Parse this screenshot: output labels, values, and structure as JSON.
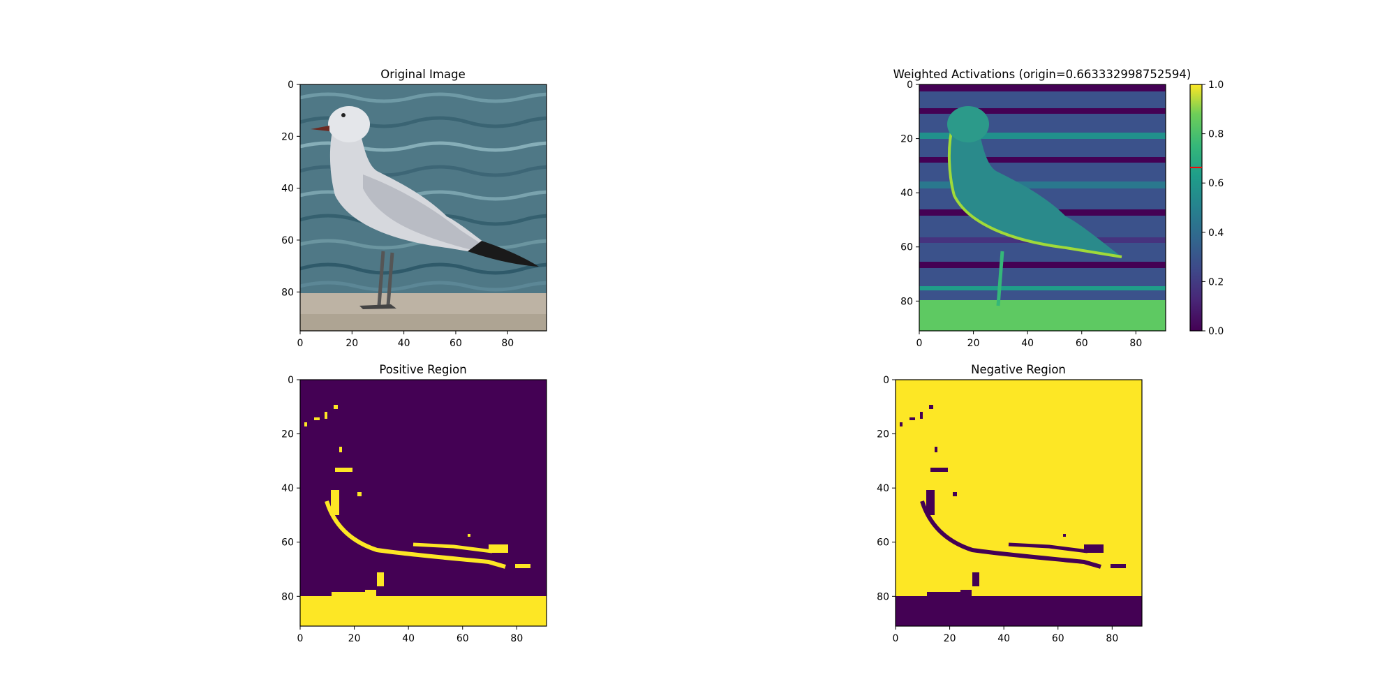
{
  "chart_data": [
    {
      "type": "image",
      "title": "Original Image",
      "image_subject": "seagull standing on a concrete ledge by the water",
      "xlim": [
        0,
        95
      ],
      "ylim": [
        95,
        0
      ],
      "x_ticks": [
        "0",
        "20",
        "40",
        "60",
        "80"
      ],
      "y_ticks": [
        "0",
        "20",
        "40",
        "60",
        "80"
      ],
      "colors": {
        "water": "#55808f",
        "bird": "#d9dbe0",
        "wing_tip": "#1a1a1a",
        "ledge": "#bdb3a4"
      }
    },
    {
      "type": "heatmap",
      "title": "Weighted Activations (origin=0.663332998752594)",
      "colormap": "viridis",
      "xlim": [
        0,
        91
      ],
      "ylim": [
        91,
        0
      ],
      "x_ticks": [
        "0",
        "20",
        "40",
        "60",
        "80"
      ],
      "y_ticks": [
        "0",
        "20",
        "40",
        "60",
        "80"
      ],
      "colorbar": {
        "range": [
          0,
          1
        ],
        "ticks": [
          "0.0",
          "0.2",
          "0.4",
          "0.6",
          "0.8",
          "1.0"
        ],
        "marker_value": 0.663332998752594,
        "marker_color": "#ff0000"
      }
    },
    {
      "type": "heatmap",
      "title": "Positive Region",
      "colormap": "viridis-binary",
      "xlim": [
        0,
        91
      ],
      "ylim": [
        91,
        0
      ],
      "x_ticks": [
        "0",
        "20",
        "40",
        "60",
        "80"
      ],
      "y_ticks": [
        "0",
        "20",
        "40",
        "60",
        "80"
      ],
      "colors": {
        "low": "#440154",
        "high": "#fde725"
      }
    },
    {
      "type": "heatmap",
      "title": "Negative Region",
      "colormap": "viridis-binary",
      "xlim": [
        0,
        91
      ],
      "ylim": [
        91,
        0
      ],
      "x_ticks": [
        "0",
        "20",
        "40",
        "60",
        "80"
      ],
      "y_ticks": [
        "0",
        "20",
        "40",
        "60",
        "80"
      ],
      "colors": {
        "low": "#440154",
        "high": "#fde725"
      }
    }
  ]
}
